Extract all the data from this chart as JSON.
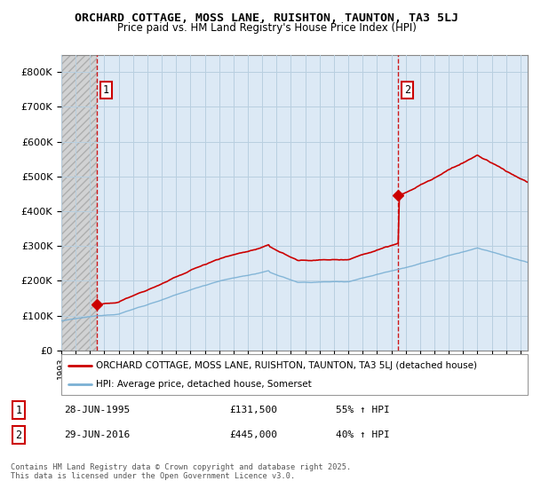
{
  "title": "ORCHARD COTTAGE, MOSS LANE, RUISHTON, TAUNTON, TA3 5LJ",
  "subtitle": "Price paid vs. HM Land Registry's House Price Index (HPI)",
  "ylim": [
    0,
    850000
  ],
  "yticks": [
    0,
    100000,
    200000,
    300000,
    400000,
    500000,
    600000,
    700000,
    800000
  ],
  "ytick_labels": [
    "£0",
    "£100K",
    "£200K",
    "£300K",
    "£400K",
    "£500K",
    "£600K",
    "£700K",
    "£800K"
  ],
  "line1_color": "#cc0000",
  "line2_color": "#7ab0d4",
  "purchase1_year": 1995.49,
  "purchase1_price": 131500,
  "purchase2_year": 2016.49,
  "purchase2_price": 445000,
  "legend_label1": "ORCHARD COTTAGE, MOSS LANE, RUISHTON, TAUNTON, TA3 5LJ (detached house)",
  "legend_label2": "HPI: Average price, detached house, Somerset",
  "table_row1": [
    "1",
    "28-JUN-1995",
    "£131,500",
    "55% ↑ HPI"
  ],
  "table_row2": [
    "2",
    "29-JUN-2016",
    "£445,000",
    "40% ↑ HPI"
  ],
  "footnote": "Contains HM Land Registry data © Crown copyright and database right 2025.\nThis data is licensed under the Open Government Licence v3.0.",
  "bg_color": "#ffffff",
  "plot_bg": "#dce9f5",
  "grid_color": "#b8cfe0",
  "hatch_bg": "#d0d0d0"
}
